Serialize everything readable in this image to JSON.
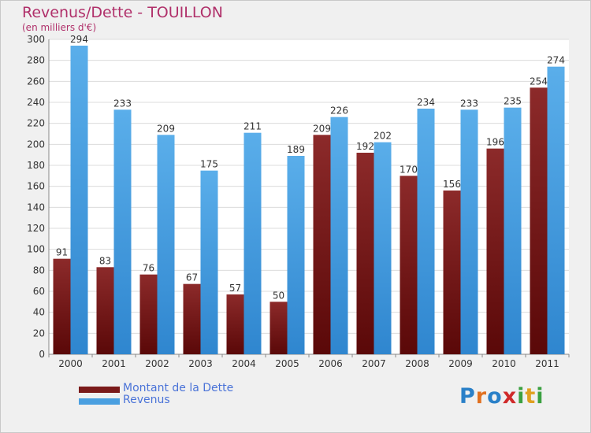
{
  "title": "Revenus/Dette - TOUILLON",
  "subtitle": "(en milliers d'€)",
  "chart_data": {
    "type": "bar",
    "categories": [
      "2000",
      "2001",
      "2002",
      "2003",
      "2004",
      "2005",
      "2006",
      "2007",
      "2008",
      "2009",
      "2010",
      "2011"
    ],
    "series": [
      {
        "name": "Montant de la Dette",
        "color": "#7a1a1a",
        "values": [
          91,
          83,
          76,
          67,
          57,
          50,
          209,
          192,
          170,
          156,
          196,
          254
        ]
      },
      {
        "name": "Revenus",
        "color": "#4a9fe0",
        "values": [
          294,
          233,
          209,
          175,
          211,
          189,
          226,
          202,
          234,
          233,
          235,
          274
        ]
      }
    ],
    "ylim": [
      0,
      300
    ],
    "yticks": [
      0,
      20,
      40,
      60,
      80,
      100,
      120,
      140,
      160,
      180,
      200,
      220,
      240,
      260,
      280,
      300
    ],
    "grid": true,
    "legend": "bottom-left"
  },
  "legend": {
    "items": [
      {
        "label": "Montant de la Dette",
        "color": "#7a1a1a"
      },
      {
        "label": "Revenus",
        "color": "#4a9fe0"
      }
    ]
  },
  "logo": {
    "letters": [
      "P",
      "r",
      "o",
      "x",
      "i",
      "t",
      "i"
    ],
    "colors": [
      "#2a80c8",
      "#e07020",
      "#2a80c8",
      "#d02a2a",
      "#3aa040",
      "#e0a020",
      "#3aa040"
    ]
  }
}
